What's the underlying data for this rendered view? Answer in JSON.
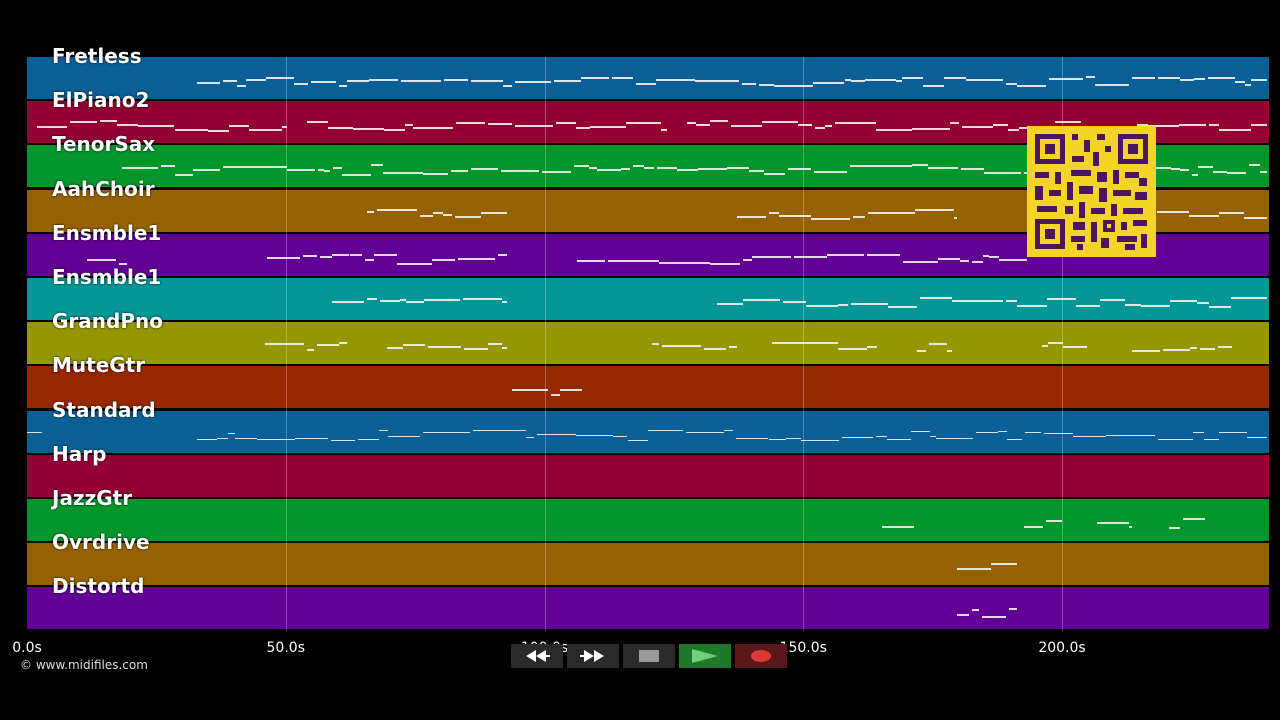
{
  "tracks": [
    {
      "name": "Fretless",
      "color": "#0a5f96"
    },
    {
      "name": "ElPiano2",
      "color": "#930034"
    },
    {
      "name": "TenorSax",
      "color": "#03962a"
    },
    {
      "name": "AahChoir",
      "color": "#966100"
    },
    {
      "name": "Ensmble1",
      "color": "#620096"
    },
    {
      "name": "Ensmble1",
      "color": "#039696"
    },
    {
      "name": "GrandPno",
      "color": "#969600"
    },
    {
      "name": "MuteGtr",
      "color": "#962800"
    },
    {
      "name": "Standard",
      "color": "#0a5f96"
    },
    {
      "name": "Harp",
      "color": "#930034"
    },
    {
      "name": "JazzGtr",
      "color": "#03962a"
    },
    {
      "name": "Ovrdrive",
      "color": "#966100"
    },
    {
      "name": "Distortd",
      "color": "#620096"
    }
  ],
  "timeline": {
    "duration_s": 240,
    "ticks": [
      "0.0s",
      "50.0s",
      "100.0s",
      "150.0s",
      "200.0s"
    ],
    "tick_values": [
      0,
      50,
      100,
      150,
      200
    ]
  },
  "copyright": "© www.midifiles.com",
  "qr_code": {
    "color": "#f5d42a"
  },
  "controls": {
    "rewind_icon": "rewind-icon",
    "forward_icon": "fast-forward-icon",
    "stop_icon": "stop-icon",
    "play_icon": "play-icon",
    "record_icon": "record-icon"
  }
}
